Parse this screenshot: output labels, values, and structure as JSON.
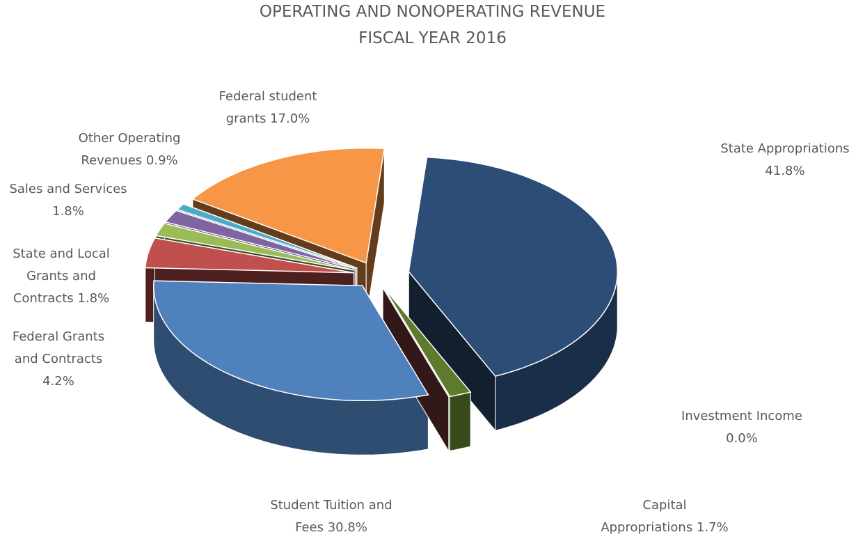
{
  "chart_data": {
    "type": "pie",
    "title": "OPERATING AND NONOPERATING REVENUE",
    "subtitle": "FISCAL YEAR 2016",
    "categories": [
      "State Appropriations",
      "Capital Appropriations",
      "Investment Income",
      "Student Tuition and Fees",
      "Federal Grants and Contracts",
      "State and Local Grants and Contracts",
      "Sales and Services",
      "Other Operating Revenues",
      "Federal student grants"
    ],
    "values": [
      41.8,
      1.7,
      0.0,
      30.8,
      4.2,
      1.8,
      1.8,
      0.9,
      17.0
    ],
    "value_labels": [
      "41.8%",
      "1.7%",
      "0.0%",
      "30.8%",
      "4.2%",
      "1.8%",
      "1.8%",
      "0.9%",
      "17.0%"
    ],
    "colors": [
      "#2c4d76",
      "#5e7a2c",
      "#7d3b3b",
      "#4f81bd",
      "#c0504d",
      "#9bbb59",
      "#8064a2",
      "#4bacc6",
      "#f79646"
    ]
  }
}
